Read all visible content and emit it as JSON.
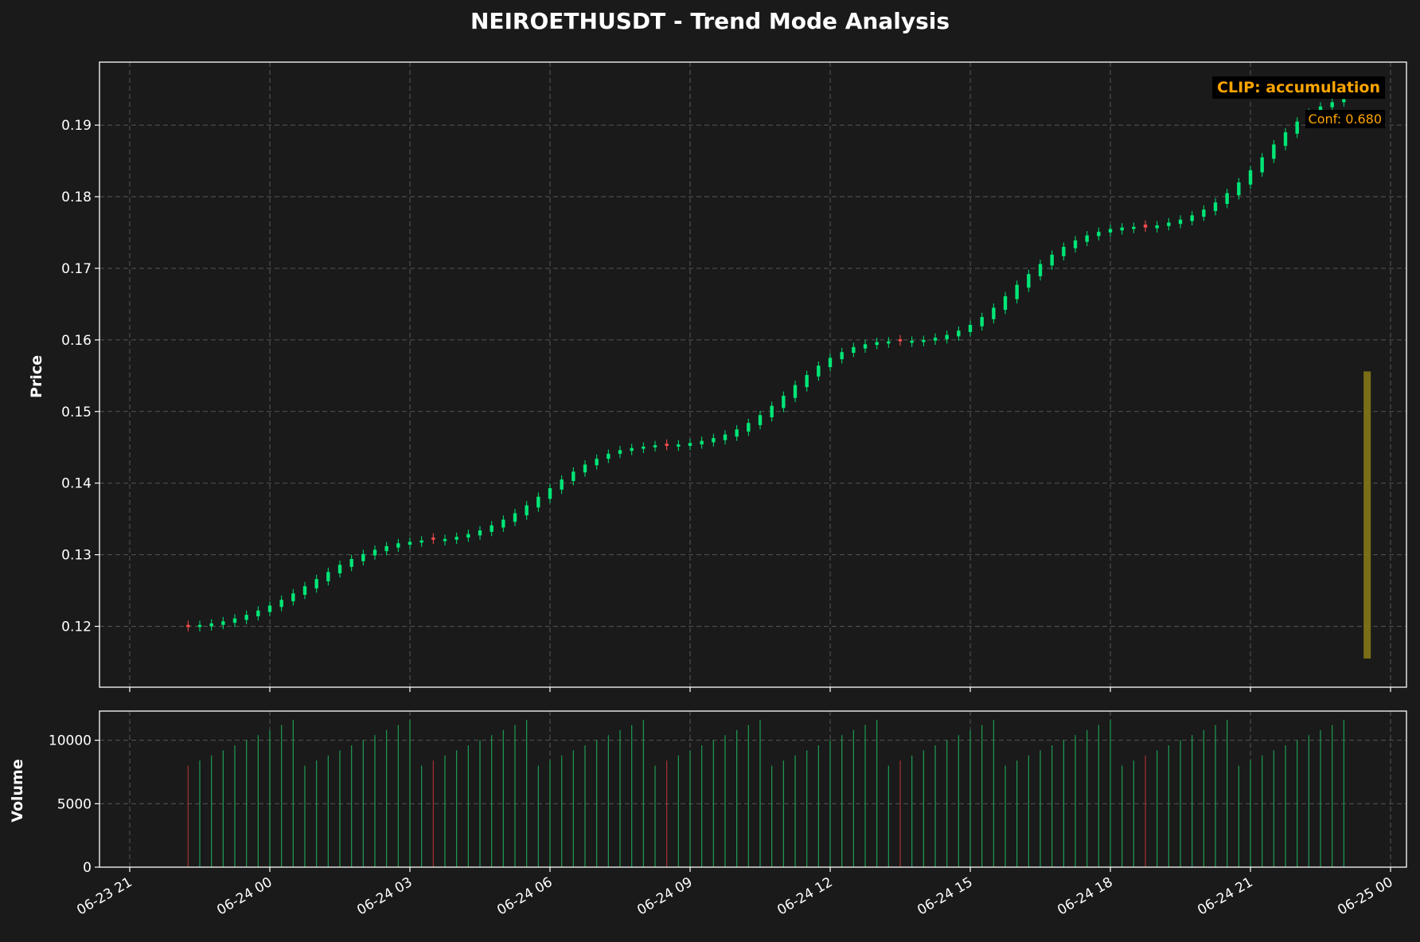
{
  "title": "NEIROETHUSDT - Trend Mode Analysis",
  "colors": {
    "background": "#1a1a1a",
    "up": "#00e676",
    "down": "#ff4d4d",
    "volume_up": "#1e9e55",
    "volume_down": "#a83232",
    "annotation": "#ffa500",
    "band": "#8b7d17",
    "grid": "#555555"
  },
  "annotation": {
    "label": "CLIP: accumulation",
    "confidence_label": "Conf: 0.680"
  },
  "chart_data": [
    {
      "type": "candlestick",
      "ylabel": "Price",
      "ylim": [
        0.1115,
        0.1988
      ],
      "xlim": [
        "06-23 21:00",
        "06-25 00:00"
      ],
      "yticks": [
        0.12,
        0.13,
        0.14,
        0.15,
        0.16,
        0.17,
        0.18,
        0.19
      ],
      "ytick_labels": [
        "0.12",
        "0.13",
        "0.14",
        "0.15",
        "0.16",
        "0.17",
        "0.18",
        "0.19"
      ],
      "grid": true,
      "first_candle_time": "06-23 22:15",
      "candle_interval_minutes": 15,
      "close": [
        0.1199,
        0.1202,
        0.1204,
        0.1207,
        0.1211,
        0.1216,
        0.1222,
        0.1229,
        0.1237,
        0.1246,
        0.1256,
        0.1266,
        0.1276,
        0.1286,
        0.1294,
        0.1301,
        0.1307,
        0.1312,
        0.1316,
        0.1318,
        0.132,
        0.1321,
        0.1322,
        0.1325,
        0.1329,
        0.1334,
        0.1341,
        0.1349,
        0.1358,
        0.1369,
        0.1381,
        0.1393,
        0.1405,
        0.1416,
        0.1426,
        0.1434,
        0.1441,
        0.1446,
        0.1449,
        0.1451,
        0.1453,
        0.1452,
        0.1454,
        0.1456,
        0.1459,
        0.1463,
        0.1468,
        0.1475,
        0.1484,
        0.1495,
        0.1508,
        0.1522,
        0.1537,
        0.1551,
        0.1564,
        0.1575,
        0.1583,
        0.159,
        0.1594,
        0.1597,
        0.1598,
        0.1598,
        0.1599,
        0.16,
        0.1603,
        0.1607,
        0.1613,
        0.1621,
        0.1632,
        0.1645,
        0.1661,
        0.1677,
        0.1692,
        0.1706,
        0.1719,
        0.173,
        0.1739,
        0.1746,
        0.1751,
        0.1755,
        0.1757,
        0.1758,
        0.1757,
        0.176,
        0.1764,
        0.1768,
        0.1774,
        0.1782,
        0.1792,
        0.1805,
        0.182,
        0.1837,
        0.1855,
        0.1873,
        0.189,
        0.1905,
        0.1917,
        0.1926,
        0.1932,
        0.1936
      ],
      "change": [
        -0.0003,
        0.0003,
        0.0004,
        0.0005,
        0.0006,
        0.0007,
        0.0008,
        0.0009,
        0.001,
        0.0011,
        0.0012,
        0.0013,
        0.0013,
        0.0012,
        0.0011,
        0.001,
        0.0008,
        0.0007,
        0.0006,
        0.0004,
        0.0003,
        -0.0003,
        0.0003,
        0.0004,
        0.0005,
        0.0007,
        0.0009,
        0.0011,
        0.0012,
        0.0014,
        0.0015,
        0.0015,
        0.0014,
        0.0013,
        0.0011,
        0.0009,
        0.0007,
        0.0005,
        0.0004,
        0.0003,
        0.0003,
        -0.0003,
        0.0003,
        0.0004,
        0.0005,
        0.0006,
        0.0008,
        0.001,
        0.0012,
        0.0014,
        0.0016,
        0.0017,
        0.0018,
        0.0017,
        0.0015,
        0.0013,
        0.001,
        0.0008,
        0.0006,
        0.0004,
        0.0003,
        -0.0003,
        0.0003,
        0.0003,
        0.0004,
        0.0006,
        0.0008,
        0.001,
        0.0013,
        0.0016,
        0.0019,
        0.002,
        0.0019,
        0.0017,
        0.0015,
        0.0013,
        0.0011,
        0.0009,
        0.0006,
        0.0005,
        0.0004,
        0.0003,
        -0.0004,
        0.0004,
        0.0005,
        0.0006,
        0.0008,
        0.001,
        0.0012,
        0.0015,
        0.0018,
        0.002,
        0.0021,
        0.002,
        0.0019,
        0.0017,
        0.0014,
        0.0011,
        0.0007,
        0.0004
      ],
      "shaded_range": {
        "time": "06-24 23:30",
        "y_from": 0.1155,
        "y_to": 0.1556
      }
    },
    {
      "type": "bar",
      "ylabel": "Volume",
      "ylim": [
        0,
        12300
      ],
      "yticks": [
        0,
        5000,
        10000
      ],
      "ytick_labels": [
        "0",
        "5000",
        "10000"
      ],
      "xtick_labels": [
        "06-23 21",
        "06-24 00",
        "06-24 03",
        "06-24 06",
        "06-24 09",
        "06-24 12",
        "06-24 15",
        "06-24 18",
        "06-24 21",
        "06-25 00"
      ],
      "grid": true,
      "volume": [
        8000,
        8400,
        8800,
        9200,
        9600,
        10000,
        10400,
        10800,
        11200,
        11600,
        8000,
        8400,
        8800,
        9200,
        9600,
        10000,
        10400,
        10800,
        11200,
        11600,
        8000,
        8400,
        8800,
        9200,
        9600,
        10000,
        10400,
        10800,
        11200,
        11600,
        8000,
        8400,
        8800,
        9200,
        9600,
        10000,
        10400,
        10800,
        11200,
        11600,
        8000,
        8400,
        8800,
        9200,
        9600,
        10000,
        10400,
        10800,
        11200,
        11600,
        8000,
        8400,
        8800,
        9200,
        9600,
        10000,
        10400,
        10800,
        11200,
        11600,
        8000,
        8400,
        8800,
        9200,
        9600,
        10000,
        10400,
        10800,
        11200,
        11600,
        8000,
        8400,
        8800,
        9200,
        9600,
        10000,
        10400,
        10800,
        11200,
        11600,
        8000,
        8400,
        8800,
        9200,
        9600,
        10000,
        10400,
        10800,
        11200,
        11600,
        8000,
        8400,
        8800,
        9200,
        9600,
        10000,
        10400,
        10800,
        11200,
        11600
      ]
    }
  ]
}
